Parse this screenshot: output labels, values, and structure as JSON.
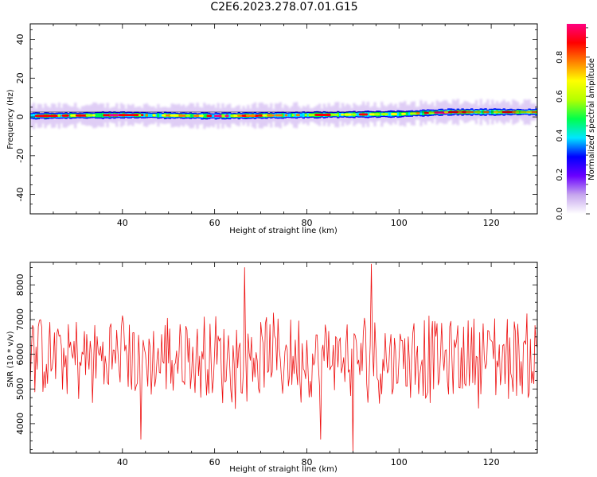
{
  "title": "C2E6.2023.278.07.01.G15",
  "chart_data": [
    {
      "type": "heatmap",
      "xlabel": "Height of straight line (km)",
      "ylabel": "Frequency (Hz)",
      "xlim": [
        20,
        130
      ],
      "ylim": [
        -50,
        48
      ],
      "x_ticks": [
        40,
        60,
        80,
        100,
        120
      ],
      "y_ticks": [
        -40,
        -20,
        0,
        20,
        40
      ],
      "colorbar": {
        "label": "Normalized spectral amplitude",
        "range": [
          0,
          0.97
        ],
        "ticks": [
          0.0,
          0.2,
          0.4,
          0.6,
          0.8
        ],
        "tick_labels": [
          "0.0",
          "0.2",
          "0.4",
          "0.6",
          "0.8"
        ],
        "colormap": [
          "#ffffff",
          "#c6a6ee",
          "#6a00ff",
          "#0000ff",
          "#00e6ff",
          "#00ff4c",
          "#b4ff00",
          "#ffff00",
          "#ff8000",
          "#ff0000",
          "#ff0080"
        ]
      },
      "band": {
        "center_hz": [
          {
            "x": 20,
            "f": 0.5
          },
          {
            "x": 40,
            "f": 1.0
          },
          {
            "x": 60,
            "f": 0.5
          },
          {
            "x": 80,
            "f": 1.0
          },
          {
            "x": 100,
            "f": 1.5
          },
          {
            "x": 110,
            "f": 2.5
          },
          {
            "x": 130,
            "f": 2.5
          }
        ],
        "core_halfwidth_hz": 1.5,
        "halo_halfwidth_hz": 4
      }
    },
    {
      "type": "line",
      "color": "#ee1111",
      "xlabel": "Height of straight line (km)",
      "ylabel": "SNR (10 * v/v)",
      "xlim": [
        20,
        130
      ],
      "ylim": [
        3150,
        8650
      ],
      "x_ticks": [
        40,
        60,
        80,
        100,
        120
      ],
      "y_ticks": [
        4000,
        5000,
        6000,
        7000,
        8000
      ],
      "x_step_km": 0.25,
      "mean": 5900,
      "noted_extrema": [
        {
          "x": 44,
          "y": 3550
        },
        {
          "x": 66.5,
          "y": 8500
        },
        {
          "x": 83,
          "y": 3550
        },
        {
          "x": 90,
          "y": 3200
        },
        {
          "x": 94,
          "y": 8600
        }
      ]
    }
  ]
}
